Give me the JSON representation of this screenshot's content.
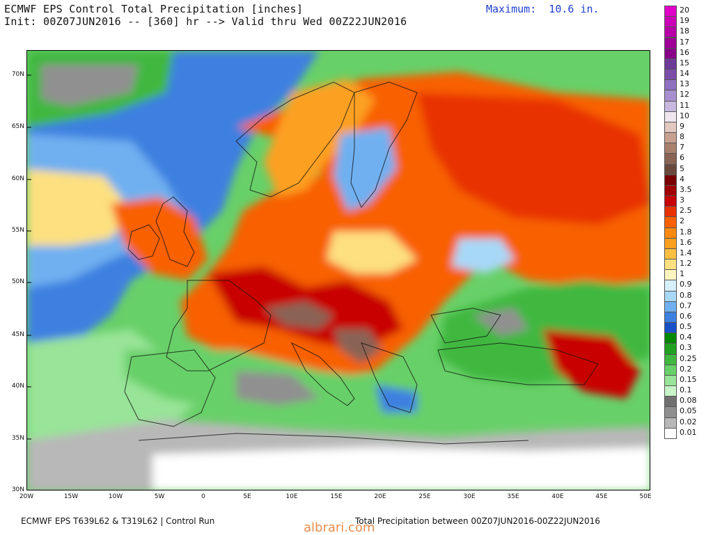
{
  "header": {
    "title": "ECMWF EPS Control Total Precipitation [inches]",
    "init_line": "Init: 00Z07JUN2016 -- [360] hr --> Valid thru Wed 00Z22JUN2016",
    "maximum": "Maximum:  10.6 in."
  },
  "axes": {
    "lat_labels": [
      "70N",
      "65N",
      "60N",
      "55N",
      "50N",
      "45N",
      "40N",
      "35N",
      "30N"
    ],
    "lon_labels": [
      "20W",
      "15W",
      "10W",
      "5W",
      "0",
      "5E",
      "10E",
      "15E",
      "20E",
      "25E",
      "30E",
      "35E",
      "40E",
      "45E",
      "50E"
    ]
  },
  "legend": {
    "levels": [
      {
        "label": "20",
        "color": "#e000c8"
      },
      {
        "label": "19",
        "color": "#cc00b8"
      },
      {
        "label": "18",
        "color": "#b800a8"
      },
      {
        "label": "17",
        "color": "#a00098"
      },
      {
        "label": "16",
        "color": "#880088"
      },
      {
        "label": "15",
        "color": "#6e3a98"
      },
      {
        "label": "14",
        "color": "#7c4ea8"
      },
      {
        "label": "13",
        "color": "#9070c0"
      },
      {
        "label": "12",
        "color": "#a890d0"
      },
      {
        "label": "11",
        "color": "#c8b8e0"
      },
      {
        "label": "10",
        "color": "#f0e6f0"
      },
      {
        "label": "9",
        "color": "#e2c8c0"
      },
      {
        "label": "8",
        "color": "#c8a090"
      },
      {
        "label": "7",
        "color": "#a8806c"
      },
      {
        "label": "6",
        "color": "#8a6454"
      },
      {
        "label": "5",
        "color": "#6a4a3c"
      },
      {
        "label": "4",
        "color": "#7a0000"
      },
      {
        "label": "3.5",
        "color": "#a00000"
      },
      {
        "label": "3",
        "color": "#c80000"
      },
      {
        "label": "2.5",
        "color": "#e83000"
      },
      {
        "label": "2",
        "color": "#f86000"
      },
      {
        "label": "1.8",
        "color": "#fa8a10"
      },
      {
        "label": "1.6",
        "color": "#fca020"
      },
      {
        "label": "1.4",
        "color": "#fcc040"
      },
      {
        "label": "1.2",
        "color": "#fde080"
      },
      {
        "label": "1",
        "color": "#fef4c0"
      },
      {
        "label": "0.9",
        "color": "#d8f0fc"
      },
      {
        "label": "0.8",
        "color": "#a8d8f8"
      },
      {
        "label": "0.7",
        "color": "#70b0f0"
      },
      {
        "label": "0.6",
        "color": "#3c80e0"
      },
      {
        "label": "0.5",
        "color": "#1850c8"
      },
      {
        "label": "0.4",
        "color": "#008800"
      },
      {
        "label": "0.3",
        "color": "#22a022"
      },
      {
        "label": "0.25",
        "color": "#40b840"
      },
      {
        "label": "0.2",
        "color": "#68d068"
      },
      {
        "label": "0.15",
        "color": "#98e498"
      },
      {
        "label": "0.1",
        "color": "#c8f4c8"
      },
      {
        "label": "0.08",
        "color": "#707070"
      },
      {
        "label": "0.05",
        "color": "#909090"
      },
      {
        "label": "0.02",
        "color": "#b8b8b8"
      },
      {
        "label": "0.01",
        "color": "#ffffff"
      }
    ]
  },
  "footer": {
    "left": "ECMWF EPS T639L62 & T319L62 | Control Run",
    "right": "Total Precipitation between 00Z07JUN2016-00Z22JUN2016"
  },
  "watermark": "albrari.com"
}
